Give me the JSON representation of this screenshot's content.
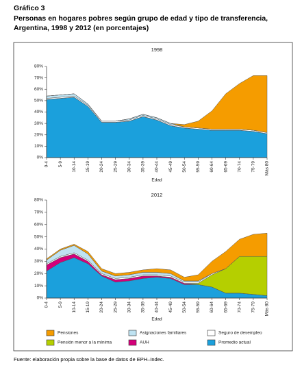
{
  "header": {
    "label": "Gráfico 3",
    "title": "Personas en hogares pobres según grupo de edad y tipo de transferencia, Argentina, 1998 y 2012 (en porcentajes)"
  },
  "source": "Fuente: elaboración propia sobre la base de datos de EPH–Indec.",
  "chart_data": [
    {
      "type": "stacked-area",
      "title": "1998",
      "x_label": "Edad",
      "categories": [
        "0-4",
        "5-9",
        "10-14",
        "15-19",
        "20-24",
        "25-29",
        "30-34",
        "35-39",
        "40-44",
        "45-49",
        "50-54",
        "55-59",
        "60-64",
        "65-69",
        "70-74",
        "75-79",
        "Más 80"
      ],
      "ylim": [
        0,
        80
      ],
      "yticks": [
        {
          "value": 0,
          "label": "0%"
        },
        {
          "value": 10,
          "label": "10%"
        },
        {
          "value": 20,
          "label": "20%"
        },
        {
          "value": 30,
          "label": "30%"
        },
        {
          "value": 40,
          "label": "40%"
        },
        {
          "value": 50,
          "label": "50%"
        },
        {
          "value": 60,
          "label": "60%"
        },
        {
          "value": 70,
          "label": "70%"
        },
        {
          "value": 80,
          "label": "80%"
        }
      ],
      "series": [
        {
          "name": "Promedio actual",
          "color": "#1ba0dc",
          "values": [
            51,
            52,
            53,
            45,
            31,
            31,
            32,
            36,
            33,
            28,
            26,
            25,
            24,
            24,
            24,
            23,
            21
          ]
        },
        {
          "name": "AUH",
          "color": "#d4007a",
          "values": [
            0,
            0,
            0,
            0,
            0,
            0,
            0,
            0,
            0,
            0,
            0,
            0,
            0,
            0,
            0,
            0,
            0
          ]
        },
        {
          "name": "Pensión menor a la mínima",
          "color": "#b5cf00",
          "values": [
            0,
            0,
            0,
            0,
            0,
            0,
            0,
            0,
            0,
            0,
            0,
            0,
            0,
            0,
            0,
            0,
            0
          ]
        },
        {
          "name": "Seguro de desempleo",
          "color": "#ffffff",
          "values": [
            1,
            1,
            1,
            1,
            1,
            1,
            1,
            1,
            1,
            1,
            1,
            1,
            1,
            1,
            1,
            1,
            1
          ]
        },
        {
          "name": "Asignaciones familiares",
          "color": "#bfe3f2",
          "values": [
            2,
            2,
            2,
            1,
            0,
            0,
            1,
            1,
            1,
            1,
            0,
            0,
            0,
            0,
            0,
            0,
            0
          ]
        },
        {
          "name": "Pensiones",
          "color": "#f59c00",
          "values": [
            0,
            0,
            0,
            0,
            0,
            0,
            0,
            0,
            0,
            0,
            2,
            6,
            16,
            31,
            40,
            48,
            50
          ]
        }
      ]
    },
    {
      "type": "stacked-area",
      "title": "2012",
      "x_label": "Edad",
      "categories": [
        "0-4",
        "5-9",
        "10-14",
        "15-19",
        "20-24",
        "25-29",
        "30-34",
        "35-39",
        "40-44",
        "45-49",
        "50-54",
        "55-59",
        "60-64",
        "65-69",
        "70-74",
        "75-79",
        "Más 80"
      ],
      "ylim": [
        0,
        80
      ],
      "yticks": [
        {
          "value": 0,
          "label": "0%"
        },
        {
          "value": 10,
          "label": "10%"
        },
        {
          "value": 20,
          "label": "20%"
        },
        {
          "value": 30,
          "label": "30%"
        },
        {
          "value": 40,
          "label": "40%"
        },
        {
          "value": 50,
          "label": "50%"
        },
        {
          "value": 60,
          "label": "60%"
        },
        {
          "value": 70,
          "label": "70%"
        },
        {
          "value": 80,
          "label": "80%"
        }
      ],
      "series": [
        {
          "name": "Promedio actual",
          "color": "#1ba0dc",
          "values": [
            22,
            29,
            33,
            28,
            18,
            13,
            14,
            16,
            17,
            16,
            11,
            11,
            9,
            4,
            4,
            3,
            2
          ]
        },
        {
          "name": "AUH",
          "color": "#d4007a",
          "values": [
            5,
            4,
            3,
            2,
            1,
            2,
            2,
            2,
            1,
            1,
            1,
            0,
            0,
            0,
            0,
            0,
            0
          ]
        },
        {
          "name": "Pensión menor a la mínima",
          "color": "#b5cf00",
          "values": [
            0,
            0,
            0,
            0,
            0,
            0,
            0,
            0,
            0,
            0,
            0,
            1,
            10,
            20,
            30,
            31,
            32
          ]
        },
        {
          "name": "Seguro de desempleo",
          "color": "#ffffff",
          "values": [
            1,
            1,
            1,
            1,
            1,
            1,
            1,
            1,
            1,
            1,
            1,
            1,
            1,
            0,
            0,
            0,
            0
          ]
        },
        {
          "name": "Asignaciones familiares",
          "color": "#bfe3f2",
          "values": [
            3,
            5,
            6,
            5,
            2,
            2,
            2,
            2,
            2,
            2,
            1,
            1,
            0,
            0,
            0,
            0,
            0
          ]
        },
        {
          "name": "Pensiones",
          "color": "#f59c00",
          "values": [
            1,
            1,
            1,
            2,
            2,
            2,
            2,
            2,
            3,
            3,
            3,
            5,
            10,
            14,
            14,
            18,
            19
          ]
        }
      ]
    }
  ]
}
